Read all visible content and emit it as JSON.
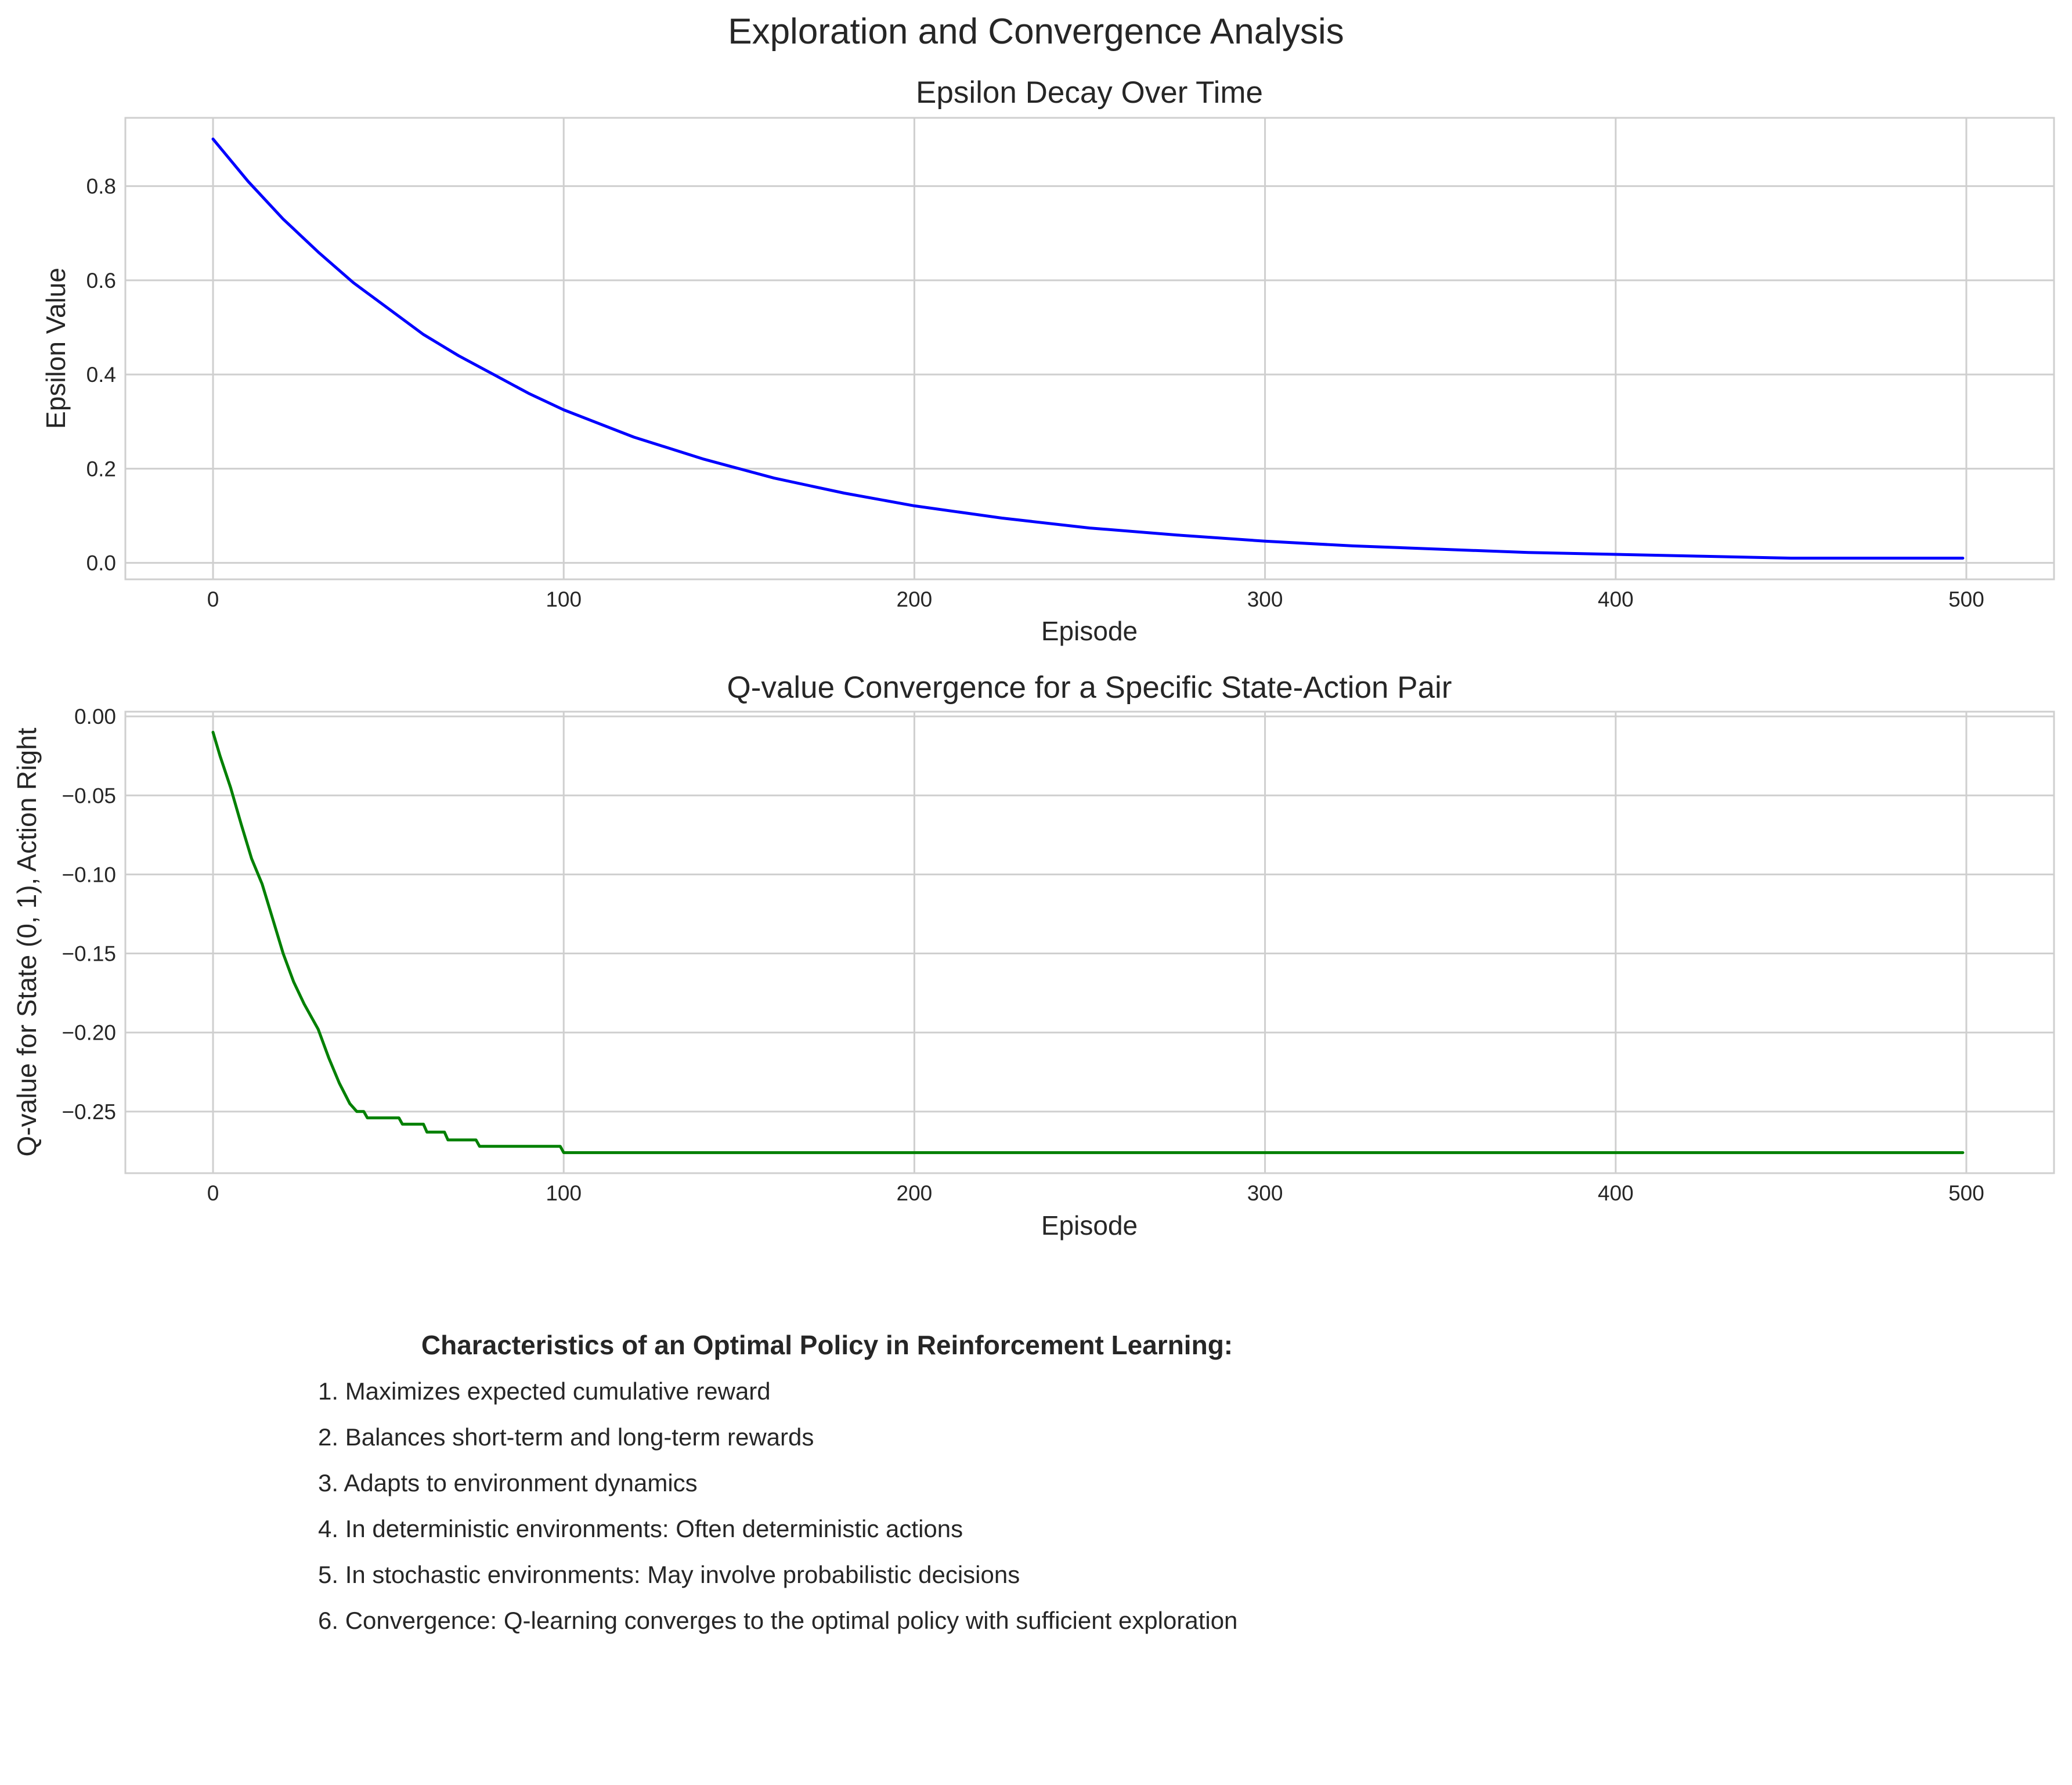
{
  "figure": {
    "title": "Exploration and Convergence Analysis"
  },
  "chart_data": [
    {
      "type": "line",
      "title": "Epsilon Decay Over Time",
      "xlabel": "Episode",
      "ylabel": "Epsilon Value",
      "xlim": [
        -25,
        525
      ],
      "ylim": [
        -0.035,
        0.945
      ],
      "xticks": [
        0,
        100,
        200,
        300,
        400,
        500
      ],
      "yticks": [
        0.0,
        0.2,
        0.4,
        0.6,
        0.8
      ],
      "xtick_labels": [
        "0",
        "100",
        "200",
        "300",
        "400",
        "500"
      ],
      "ytick_labels": [
        "0.0",
        "0.2",
        "0.4",
        "0.6",
        "0.8"
      ],
      "grid": true,
      "color": "#0000ff",
      "series": [
        {
          "x": [
            0,
            10,
            20,
            30,
            40,
            50,
            60,
            70,
            80,
            90,
            100,
            120,
            140,
            160,
            180,
            200,
            225,
            250,
            275,
            300,
            325,
            350,
            375,
            400,
            425,
            450,
            475,
            499
          ],
          "y": [
            0.9,
            0.81,
            0.73,
            0.66,
            0.595,
            0.54,
            0.485,
            0.44,
            0.4,
            0.36,
            0.325,
            0.267,
            0.22,
            0.18,
            0.148,
            0.121,
            0.095,
            0.074,
            0.059,
            0.046,
            0.036,
            0.029,
            0.022,
            0.018,
            0.014,
            0.01,
            0.01,
            0.01
          ]
        }
      ]
    },
    {
      "type": "line",
      "title": "Q-value Convergence for a Specific State-Action Pair",
      "xlabel": "Episode",
      "ylabel": "Q-value for State (0, 1), Action Right",
      "xlim": [
        -25,
        525
      ],
      "ylim": [
        -0.289,
        0.003
      ],
      "xticks": [
        0,
        100,
        200,
        300,
        400,
        500
      ],
      "yticks": [
        0.0,
        -0.05,
        -0.1,
        -0.15,
        -0.2,
        -0.25
      ],
      "xtick_labels": [
        "0",
        "100",
        "200",
        "300",
        "400",
        "500"
      ],
      "ytick_labels": [
        "0.00",
        "−0.05",
        "−0.10",
        "−0.15",
        "−0.20",
        "−0.25"
      ],
      "grid": true,
      "color": "#008000",
      "series": [
        {
          "x": [
            0,
            2,
            5,
            8,
            11,
            14,
            17,
            20,
            23,
            26,
            30,
            33,
            36,
            39,
            41,
            43,
            44,
            53,
            54,
            60,
            61,
            66,
            67,
            75,
            76,
            99,
            100,
            499
          ],
          "y": [
            -0.01,
            -0.025,
            -0.045,
            -0.068,
            -0.09,
            -0.106,
            -0.128,
            -0.15,
            -0.168,
            -0.182,
            -0.198,
            -0.216,
            -0.232,
            -0.245,
            -0.25,
            -0.25,
            -0.254,
            -0.254,
            -0.258,
            -0.258,
            -0.263,
            -0.263,
            -0.268,
            -0.268,
            -0.272,
            -0.272,
            -0.276,
            -0.276
          ]
        }
      ]
    }
  ],
  "policy": {
    "heading": "Characteristics of an Optimal Policy in Reinforcement Learning:",
    "items": [
      "1. Maximizes expected cumulative reward",
      "2. Balances short-term and long-term rewards",
      "3. Adapts to environment dynamics",
      "4. In deterministic environments: Often deterministic actions",
      "5. In stochastic environments: May involve probabilistic decisions",
      "6. Convergence: Q-learning converges to the optimal policy with sufficient exploration"
    ]
  }
}
